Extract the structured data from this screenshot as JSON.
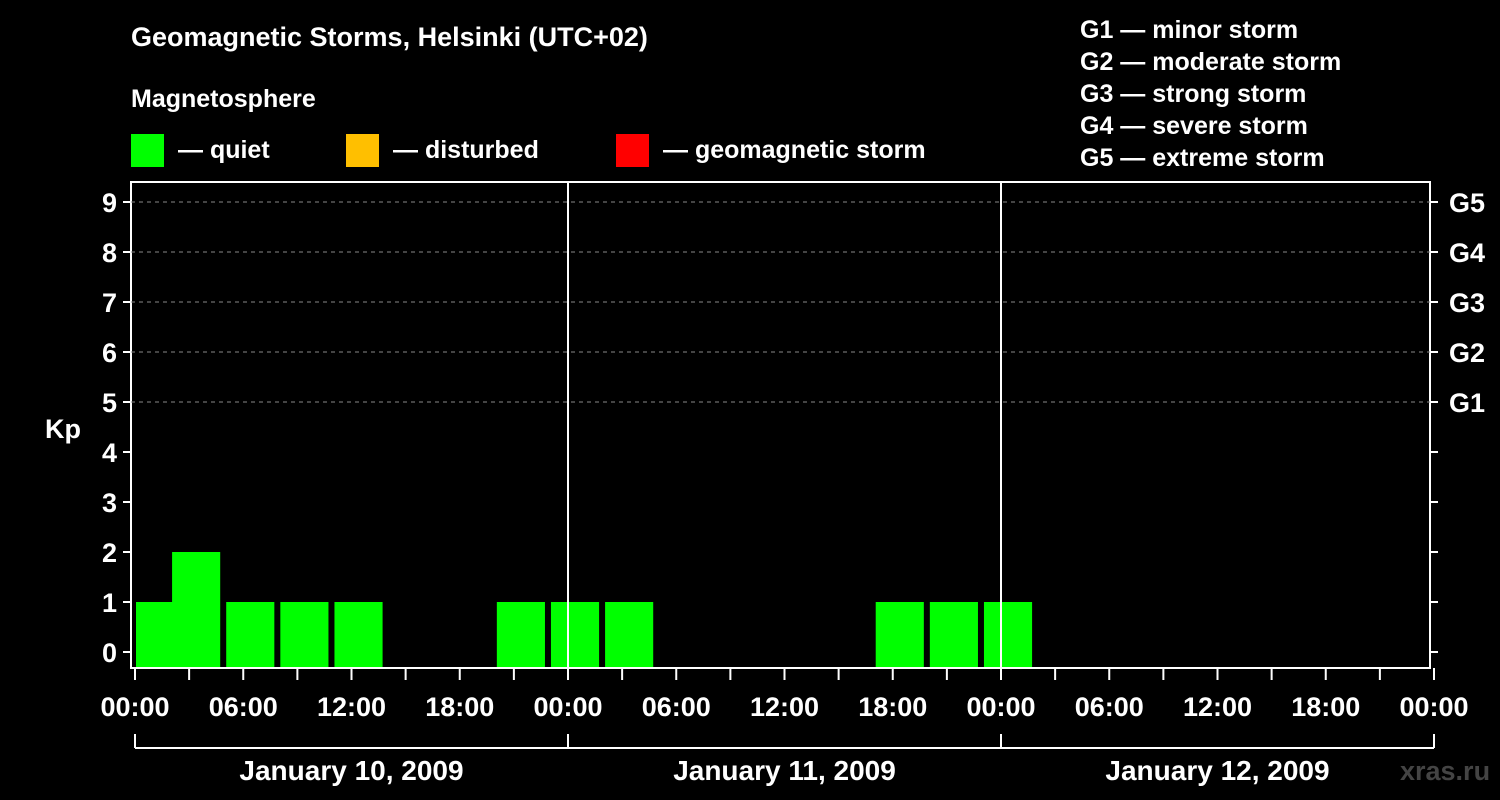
{
  "title": "Geomagnetic Storms, Helsinki (UTC+02)",
  "subtitle": "Magnetosphere",
  "legend": [
    {
      "label": "— quiet",
      "color": "#00ff00"
    },
    {
      "label": "— disturbed",
      "color": "#ffbf00"
    },
    {
      "label": "— geomagnetic storm",
      "color": "#ff0000"
    }
  ],
  "gscale": [
    "G1 — minor storm",
    "G2 — moderate storm",
    "G3 — strong storm",
    "G4 — severe storm",
    "G5 — extreme storm"
  ],
  "watermark": "xras.ru",
  "chart_data": {
    "type": "bar",
    "title": "Geomagnetic Storms, Helsinki (UTC+02)",
    "ylabel": "Kp",
    "ylim": [
      0,
      9
    ],
    "yticks": [
      "0",
      "1",
      "2",
      "3",
      "4",
      "5",
      "6",
      "7",
      "8",
      "9"
    ],
    "right_axis_labels": [
      {
        "kp": 5,
        "label": "G1"
      },
      {
        "kp": 6,
        "label": "G2"
      },
      {
        "kp": 7,
        "label": "G3"
      },
      {
        "kp": 8,
        "label": "G4"
      },
      {
        "kp": 9,
        "label": "G5"
      }
    ],
    "grid": "dashed horizontal at Kp 5-9",
    "x_range_hours": [
      0,
      72
    ],
    "xtick_labels": [
      "00:00",
      "06:00",
      "12:00",
      "18:00",
      "00:00",
      "06:00",
      "12:00",
      "18:00",
      "00:00",
      "06:00",
      "12:00",
      "18:00",
      "00:00"
    ],
    "days": [
      "January 10, 2009",
      "January 11, 2009",
      "January 12, 2009"
    ],
    "bars": [
      {
        "start": 0,
        "kp": 1,
        "color": "#00ff00"
      },
      {
        "start": 2,
        "kp": 2,
        "color": "#00ff00"
      },
      {
        "start": 5,
        "kp": 1,
        "color": "#00ff00"
      },
      {
        "start": 8,
        "kp": 1,
        "color": "#00ff00"
      },
      {
        "start": 11,
        "kp": 1,
        "color": "#00ff00"
      },
      {
        "start": 20,
        "kp": 1,
        "color": "#00ff00"
      },
      {
        "start": 23,
        "kp": 1,
        "color": "#00ff00"
      },
      {
        "start": 26,
        "kp": 1,
        "color": "#00ff00"
      },
      {
        "start": 41,
        "kp": 1,
        "color": "#00ff00"
      },
      {
        "start": 44,
        "kp": 1,
        "color": "#00ff00"
      },
      {
        "start": 47,
        "kp": 1,
        "color": "#00ff00"
      }
    ]
  }
}
